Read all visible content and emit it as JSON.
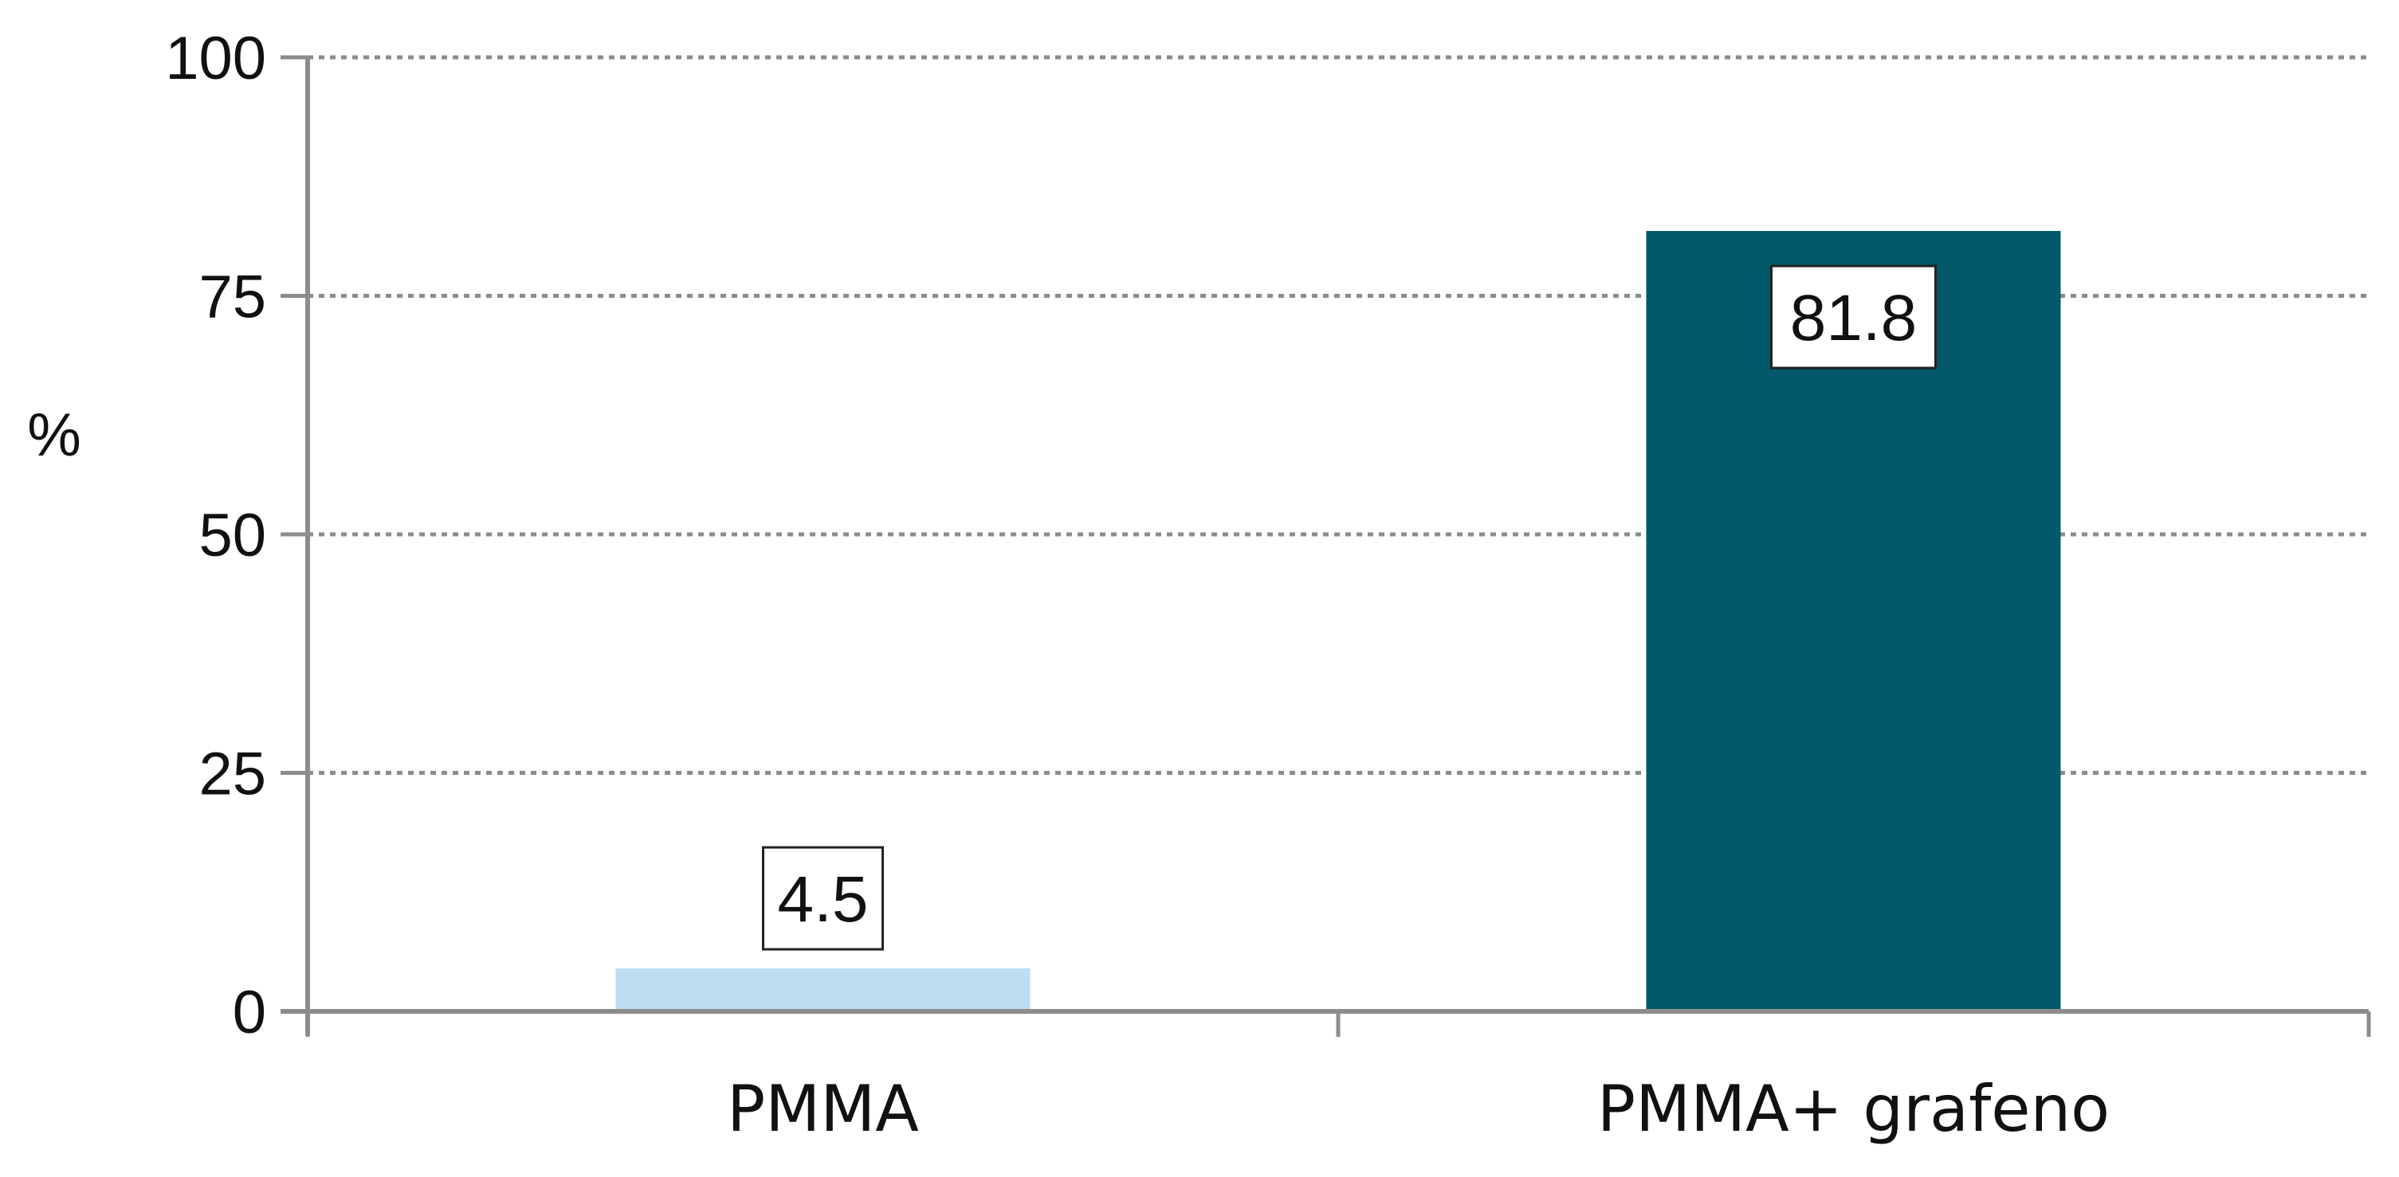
{
  "chart_data": {
    "type": "bar",
    "title": "",
    "xlabel": "",
    "ylabel": "%",
    "ylim": [
      0,
      100
    ],
    "yticks": [
      0,
      25,
      50,
      75,
      100
    ],
    "grid": true,
    "categories": [
      "PMMA",
      "PMMA+ grafeno"
    ],
    "values": [
      4.5,
      81.8
    ],
    "data_labels": [
      "4.5",
      "81.8"
    ],
    "colors": [
      "#bddcf2",
      "#02596a"
    ],
    "axis_color": "#8c8c8c",
    "grid_color": "#8c8c8c"
  }
}
